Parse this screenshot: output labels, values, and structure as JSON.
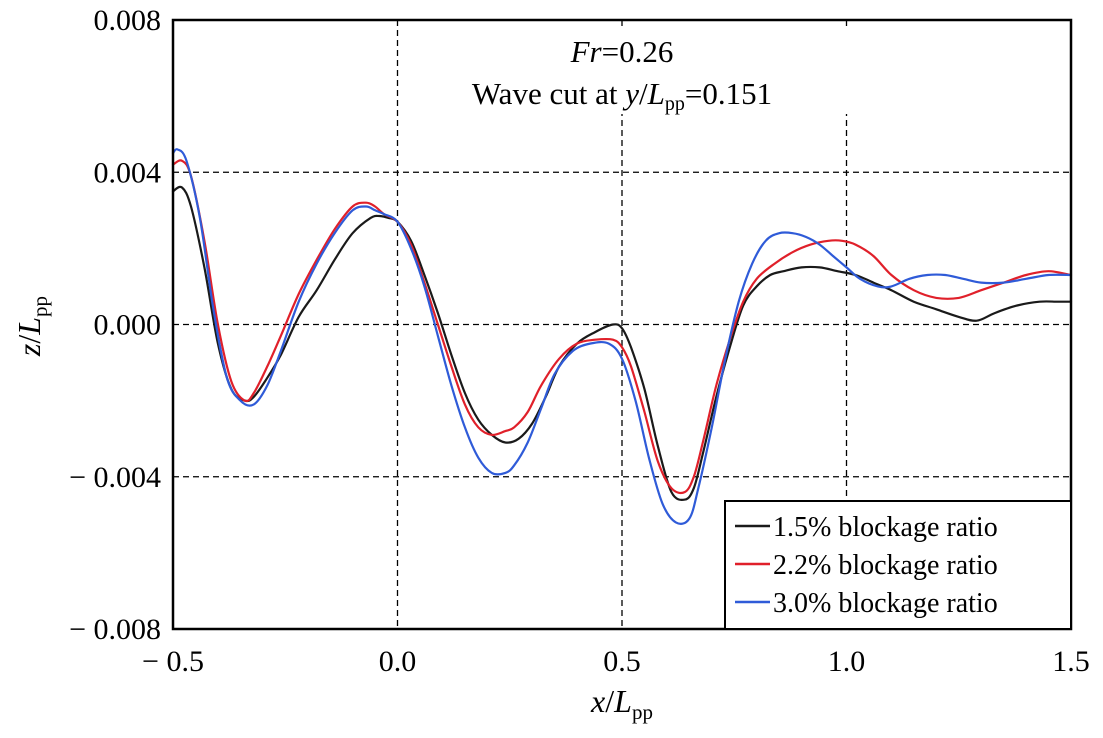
{
  "chart_data": {
    "type": "line",
    "title": "",
    "annotation": {
      "line1_italic": "Fr",
      "line1_rest": "=0.26",
      "line2_prefix": "Wave cut at ",
      "line2_var": "y",
      "line2_slash": "/",
      "line2_L": "L",
      "line2_sub": "pp",
      "line2_rest": "=0.151"
    },
    "xlabel": {
      "var": "x",
      "slash": "/",
      "L": "L",
      "sub": "pp"
    },
    "ylabel": {
      "var": "z",
      "slash": "/",
      "L": "L",
      "sub": "pp"
    },
    "xlim": [
      -0.5,
      1.5
    ],
    "ylim": [
      -0.008,
      0.008
    ],
    "xticks": [
      -0.5,
      0.0,
      0.5,
      1.0,
      1.5
    ],
    "xtick_labels": [
      "− 0.5",
      "0.0",
      "0.5",
      "1.0",
      "1.5"
    ],
    "yticks": [
      0.008,
      0.004,
      0.0,
      -0.004,
      -0.008
    ],
    "ytick_labels": [
      "0.008",
      "0.004",
      "0.000",
      "− 0.004",
      "− 0.008"
    ],
    "grid": "dashed",
    "legend_position": "bottom-right",
    "series": [
      {
        "name": "1.5% blockage ratio",
        "color": "#1a1a1a",
        "x": [
          -0.5,
          -0.48,
          -0.46,
          -0.43,
          -0.4,
          -0.37,
          -0.34,
          -0.32,
          -0.29,
          -0.26,
          -0.22,
          -0.18,
          -0.14,
          -0.1,
          -0.06,
          -0.04,
          -0.02,
          0.0,
          0.03,
          0.06,
          0.09,
          0.12,
          0.15,
          0.18,
          0.21,
          0.24,
          0.27,
          0.3,
          0.33,
          0.36,
          0.4,
          0.44,
          0.48,
          0.5,
          0.52,
          0.55,
          0.58,
          0.61,
          0.64,
          0.66,
          0.68,
          0.71,
          0.74,
          0.77,
          0.8,
          0.83,
          0.86,
          0.9,
          0.94,
          0.98,
          1.02,
          1.06,
          1.1,
          1.15,
          1.2,
          1.25,
          1.29,
          1.33,
          1.38,
          1.43,
          1.47,
          1.5
        ],
        "y": [
          0.0035,
          0.0036,
          0.0031,
          0.0015,
          -0.0005,
          -0.0017,
          -0.002,
          -0.0019,
          -0.0014,
          -0.0008,
          0.0002,
          0.0009,
          0.0017,
          0.0024,
          0.0028,
          0.00285,
          0.0028,
          0.0027,
          0.0022,
          0.0013,
          0.0003,
          -0.0008,
          -0.0018,
          -0.0025,
          -0.0029,
          -0.0031,
          -0.003,
          -0.0026,
          -0.0019,
          -0.0011,
          -0.0005,
          -0.0002,
          0.0,
          -0.0001,
          -0.0006,
          -0.0017,
          -0.0032,
          -0.0044,
          -0.0046,
          -0.0043,
          -0.0034,
          -0.0019,
          -0.0006,
          0.0005,
          0.001,
          0.0013,
          0.0014,
          0.0015,
          0.0015,
          0.0014,
          0.0013,
          0.0011,
          0.0009,
          0.0006,
          0.0004,
          0.0002,
          0.0001,
          0.0003,
          0.0005,
          0.0006,
          0.0006,
          0.0006
        ]
      },
      {
        "name": "2.2% blockage ratio",
        "color": "#e0202a",
        "x": [
          -0.5,
          -0.48,
          -0.46,
          -0.43,
          -0.4,
          -0.37,
          -0.34,
          -0.32,
          -0.29,
          -0.26,
          -0.22,
          -0.18,
          -0.14,
          -0.1,
          -0.07,
          -0.05,
          -0.03,
          0.0,
          0.03,
          0.06,
          0.09,
          0.12,
          0.15,
          0.18,
          0.21,
          0.24,
          0.26,
          0.29,
          0.32,
          0.36,
          0.4,
          0.44,
          0.48,
          0.5,
          0.52,
          0.55,
          0.58,
          0.61,
          0.64,
          0.66,
          0.68,
          0.71,
          0.74,
          0.77,
          0.8,
          0.84,
          0.88,
          0.92,
          0.96,
          0.99,
          1.02,
          1.06,
          1.1,
          1.15,
          1.2,
          1.25,
          1.3,
          1.35,
          1.4,
          1.45,
          1.5
        ],
        "y": [
          0.0042,
          0.0043,
          0.0039,
          0.0022,
          0.0,
          -0.0015,
          -0.002,
          -0.0018,
          -0.0011,
          -0.0003,
          0.0008,
          0.0017,
          0.0025,
          0.0031,
          0.0032,
          0.0031,
          0.0029,
          0.0027,
          0.0021,
          0.0011,
          0.0,
          -0.0011,
          -0.0021,
          -0.0027,
          -0.0029,
          -0.0028,
          -0.0027,
          -0.0023,
          -0.0016,
          -0.0009,
          -0.0005,
          -0.0004,
          -0.0004,
          -0.0006,
          -0.0011,
          -0.0023,
          -0.0036,
          -0.0043,
          -0.0044,
          -0.004,
          -0.0031,
          -0.0016,
          -0.0004,
          0.0006,
          0.0012,
          0.0016,
          0.0019,
          0.0021,
          0.0022,
          0.0022,
          0.0021,
          0.0018,
          0.0013,
          0.0009,
          0.0007,
          0.0007,
          0.0009,
          0.0011,
          0.0013,
          0.0014,
          0.0013
        ]
      },
      {
        "name": "3.0% blockage ratio",
        "color": "#2f5bd8",
        "x": [
          -0.5,
          -0.49,
          -0.47,
          -0.44,
          -0.41,
          -0.38,
          -0.35,
          -0.32,
          -0.29,
          -0.26,
          -0.22,
          -0.18,
          -0.14,
          -0.1,
          -0.07,
          -0.05,
          -0.03,
          0.0,
          0.03,
          0.06,
          0.09,
          0.12,
          0.15,
          0.18,
          0.21,
          0.24,
          0.26,
          0.29,
          0.32,
          0.35,
          0.39,
          0.43,
          0.47,
          0.5,
          0.53,
          0.56,
          0.59,
          0.62,
          0.65,
          0.67,
          0.7,
          0.73,
          0.76,
          0.79,
          0.82,
          0.85,
          0.88,
          0.91,
          0.94,
          0.97,
          1.0,
          1.03,
          1.07,
          1.1,
          1.14,
          1.18,
          1.22,
          1.26,
          1.3,
          1.35,
          1.4,
          1.45,
          1.5
        ],
        "y": [
          0.0045,
          0.0046,
          0.0043,
          0.0028,
          0.0004,
          -0.0014,
          -0.002,
          -0.0021,
          -0.0016,
          -0.0007,
          0.0006,
          0.0016,
          0.0024,
          0.003,
          0.0031,
          0.003,
          0.0029,
          0.0027,
          0.002,
          0.001,
          -0.0003,
          -0.0016,
          -0.0027,
          -0.0035,
          -0.0039,
          -0.0039,
          -0.0037,
          -0.0031,
          -0.0022,
          -0.0013,
          -0.0007,
          -0.0005,
          -0.0005,
          -0.0009,
          -0.002,
          -0.0035,
          -0.0047,
          -0.0052,
          -0.0051,
          -0.0043,
          -0.0027,
          -0.0009,
          0.0006,
          0.0016,
          0.0022,
          0.0024,
          0.0024,
          0.0023,
          0.0021,
          0.0018,
          0.0015,
          0.0012,
          0.001,
          0.001,
          0.0012,
          0.0013,
          0.0013,
          0.0012,
          0.0011,
          0.0011,
          0.0012,
          0.0013,
          0.0013
        ]
      }
    ]
  }
}
